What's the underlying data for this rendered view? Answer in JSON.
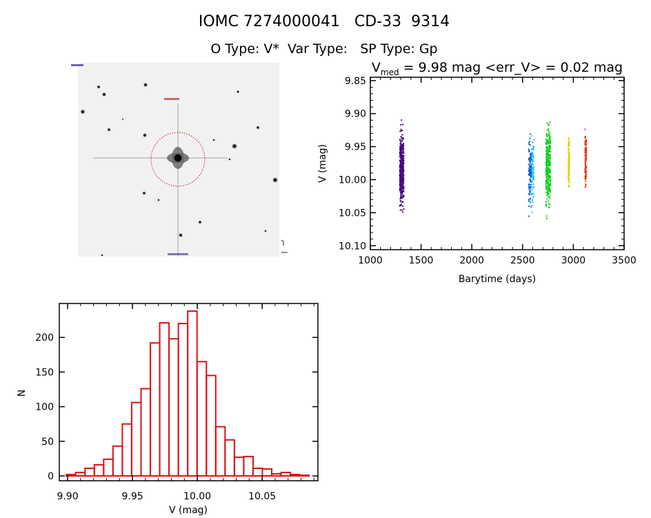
{
  "header": {
    "title": "IOMC 7274000041   CD-33  9314",
    "subtitle": "O Type: V*  Var Type:   SP Type: Gp"
  },
  "chart_data": [
    {
      "type": "image",
      "name": "finding-chart",
      "description_label": "Star field thumbnail with target circled"
    },
    {
      "type": "scatter",
      "title_prefix": "V",
      "title_sub": "med",
      "title_rest": " = 9.98 mag <err_V> = 0.02 mag",
      "xlabel": "Barytime (days)",
      "ylabel": "V (mag)",
      "xlim": [
        1000,
        3500
      ],
      "ylim": [
        10.106,
        9.845
      ],
      "xticks": [
        "1000",
        "1500",
        "2000",
        "2500",
        "3000",
        "3500"
      ],
      "yticks": [
        "9.85",
        "9.90",
        "9.95",
        "10.00",
        "10.05",
        "10.10"
      ],
      "series": [
        {
          "name": "season-1",
          "color": "#4a0a80",
          "x_range": [
            1290,
            1330
          ],
          "y_center": 9.985,
          "y_min": 9.9,
          "y_max": 10.063,
          "count": 420
        },
        {
          "name": "season-2",
          "color": "#0a5ae0",
          "color2": "#20c8f0",
          "x_range": [
            2560,
            2610
          ],
          "y_center": 9.985,
          "y_min": 9.915,
          "y_max": 10.078,
          "count": 200
        },
        {
          "name": "season-3",
          "color": "#10d020",
          "x_range": [
            2730,
            2775
          ],
          "y_center": 9.98,
          "y_min": 9.905,
          "y_max": 10.073,
          "count": 320
        },
        {
          "name": "season-4",
          "color": "#e0d000",
          "x_range": [
            2950,
            2962
          ],
          "y_center": 9.975,
          "y_min": 9.905,
          "y_max": 10.025,
          "count": 110
        },
        {
          "name": "season-5",
          "color": "#e04010",
          "x_range": [
            3115,
            3128
          ],
          "y_center": 9.97,
          "y_min": 9.91,
          "y_max": 10.03,
          "count": 110
        }
      ]
    },
    {
      "type": "bar",
      "name": "histogram",
      "xlabel": "V (mag)",
      "ylabel": "N",
      "xlim": [
        9.8936,
        10.093
      ],
      "ylim": [
        -7,
        249
      ],
      "xticks": [
        "9.90",
        "9.95",
        "10.00",
        "10.05"
      ],
      "yticks": [
        "0",
        "50",
        "100",
        "150",
        "200"
      ],
      "bin_start": 9.899,
      "bin_width": 0.0072,
      "color": "#dd1111",
      "values": [
        2,
        5,
        11,
        16,
        24,
        43,
        75,
        106,
        126,
        192,
        221,
        198,
        220,
        238,
        165,
        145,
        71,
        52,
        27,
        28,
        11,
        10,
        3,
        5,
        2,
        1
      ]
    }
  ]
}
